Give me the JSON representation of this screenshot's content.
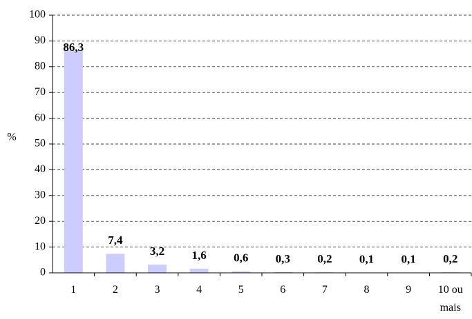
{
  "chart_data": {
    "type": "bar",
    "y_label": "%",
    "categories": [
      "1",
      "2",
      "3",
      "4",
      "5",
      "6",
      "7",
      "8",
      "9",
      "10 ou mais"
    ],
    "values": [
      86.3,
      7.4,
      3.2,
      1.6,
      0.6,
      0.3,
      0.2,
      0.1,
      0.1,
      0.2
    ],
    "value_labels": [
      "86,3",
      "7,4",
      "3,2",
      "1,6",
      "0,6",
      "0,3",
      "0,2",
      "0,1",
      "0,1",
      "0,2"
    ],
    "color": "#ccccff",
    "ylim": [
      0,
      100
    ],
    "yticks": [
      0,
      10,
      20,
      30,
      40,
      50,
      60,
      70,
      80,
      90,
      100
    ],
    "grid": true
  }
}
